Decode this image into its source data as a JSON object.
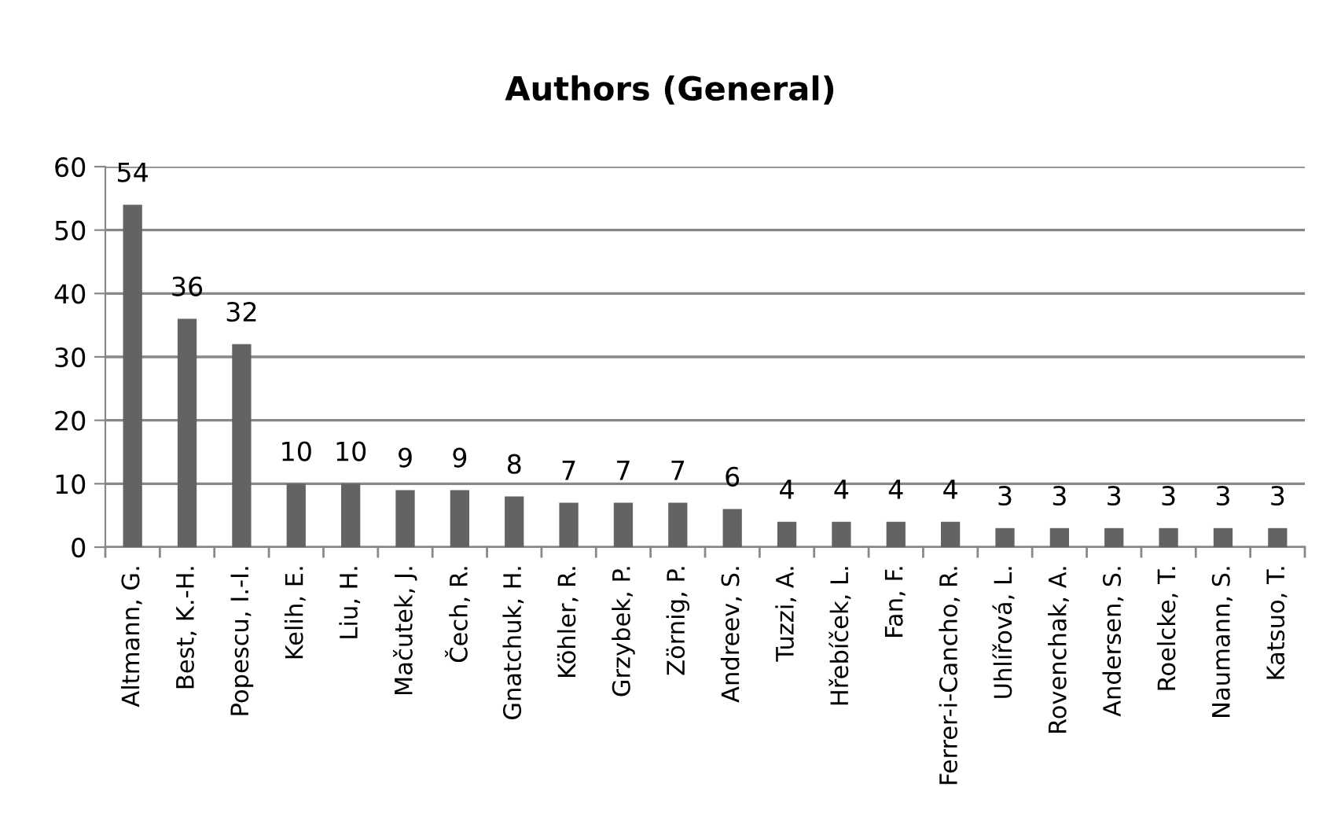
{
  "chart_data": {
    "type": "bar",
    "title": "Authors (General)",
    "categories": [
      "Altmann, G.",
      "Best, K.-H.",
      "Popescu, I.-I.",
      "Kelih, E.",
      "Liu, H.",
      "Mačutek, J.",
      "Čech, R.",
      "Gnatchuk, H.",
      "Köhler, R.",
      "Grzybek, P.",
      "Zörnig, P.",
      "Andreev, S.",
      "Tuzzi, A.",
      "Hřebíček, L.",
      "Fan, F.",
      "Ferrer-i-Cancho, R.",
      "Uhlířová, L.",
      "Rovenchak, A.",
      "Andersen, S.",
      "Roelcke, T.",
      "Naumann, S.",
      "Katsuo, T."
    ],
    "values": [
      54,
      36,
      32,
      10,
      10,
      9,
      9,
      8,
      7,
      7,
      7,
      6,
      4,
      4,
      4,
      4,
      3,
      3,
      3,
      3,
      3,
      3
    ],
    "color": "#636363",
    "ylim": [
      0,
      60
    ],
    "yticks": [
      0,
      10,
      20,
      30,
      40,
      50,
      60
    ],
    "grid": "y",
    "data_labels": true
  }
}
